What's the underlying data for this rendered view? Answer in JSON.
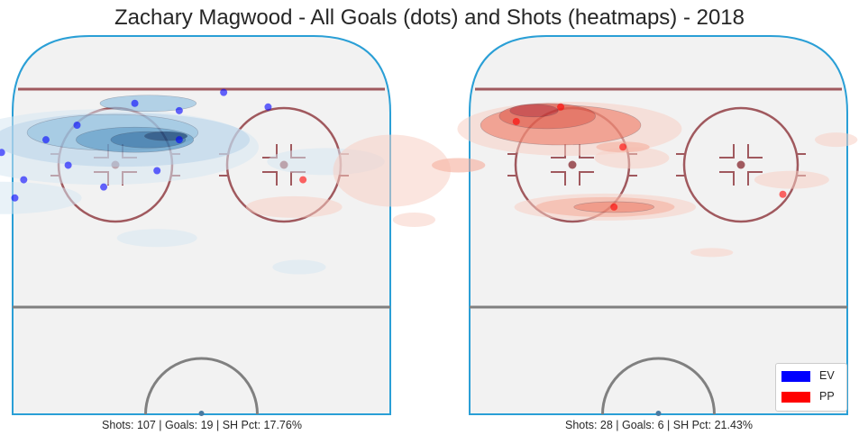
{
  "chart_data": {
    "type": "scatter",
    "title": "Zachary Magwood - All Goals (dots) and Shots (heatmaps) - 2018",
    "legend": {
      "position": "bottom-right",
      "entries": [
        {
          "label": "EV",
          "color": "#0000ff"
        },
        {
          "label": "PP",
          "color": "#ff0000"
        }
      ]
    },
    "panels": [
      {
        "series": "EV",
        "color": "#0000ff",
        "stats_text": "Shots: 107 | Goals: 19 | SH Pct: 17.76%",
        "goals": [
          [
            -72,
            32
          ],
          [
            -52,
            48
          ],
          [
            -48,
            42
          ],
          [
            -42,
            60
          ],
          [
            -45,
            85
          ],
          [
            -50,
            62
          ],
          [
            -58,
            70
          ],
          [
            -65,
            55
          ],
          [
            -30,
            78
          ],
          [
            -40,
            70
          ],
          [
            -35,
            92
          ],
          [
            -22,
            66
          ],
          [
            -28,
            100
          ],
          [
            -15,
            112
          ],
          [
            -10,
            75
          ],
          [
            -5,
            108
          ],
          [
            15,
            110
          ],
          [
            -5,
            92
          ],
          [
            5,
            118
          ]
        ],
        "heat_levels": [
          {
            "x": -8,
            "y": 94,
            "rx": 8,
            "ry": 5,
            "level": 6
          },
          {
            "x": -12,
            "y": 92,
            "rx": 14,
            "ry": 9,
            "level": 5
          },
          {
            "x": -15,
            "y": 92,
            "rx": 22,
            "ry": 14,
            "level": 4
          },
          {
            "x": -20,
            "y": 96,
            "rx": 32,
            "ry": 20,
            "level": 3
          },
          {
            "x": -12,
            "y": 112,
            "rx": 18,
            "ry": 9,
            "level": 3
          },
          {
            "x": -18,
            "y": 92,
            "rx": 48,
            "ry": 30,
            "level": 2
          },
          {
            "x": -22,
            "y": 88,
            "rx": 58,
            "ry": 42,
            "level": 1
          },
          {
            "x": -45,
            "y": 60,
            "rx": 30,
            "ry": 18,
            "level": 1
          },
          {
            "x": -68,
            "y": 32,
            "rx": 22,
            "ry": 10,
            "level": 1
          },
          {
            "x": -10,
            "y": 38,
            "rx": 15,
            "ry": 10,
            "level": 1
          },
          {
            "x": 28,
            "y": 80,
            "rx": 22,
            "ry": 15,
            "level": 1
          },
          {
            "x": 22,
            "y": 22,
            "rx": 10,
            "ry": 8,
            "level": 1
          }
        ]
      },
      {
        "series": "PP",
        "color": "#ff0000",
        "stats_text": "Shots: 28 | Goals: 6 | SH Pct: 21.43%",
        "goals": [
          [
            -22,
            110
          ],
          [
            -80,
            70
          ],
          [
            -10,
            55
          ],
          [
            -8,
            88
          ],
          [
            28,
            62
          ],
          [
            -32,
            102
          ]
        ],
        "heat_levels": [
          {
            "x": -28,
            "y": 108,
            "rx": 9,
            "ry": 7,
            "level": 5
          },
          {
            "x": -25,
            "y": 105,
            "rx": 18,
            "ry": 14,
            "level": 4
          },
          {
            "x": -22,
            "y": 100,
            "rx": 30,
            "ry": 22,
            "level": 3
          },
          {
            "x": -10,
            "y": 55,
            "rx": 15,
            "ry": 6,
            "level": 3
          },
          {
            "x": -12,
            "y": 55,
            "rx": 26,
            "ry": 11,
            "level": 2
          },
          {
            "x": -8,
            "y": 88,
            "rx": 10,
            "ry": 6,
            "level": 2
          },
          {
            "x": -45,
            "y": 78,
            "rx": 10,
            "ry": 8,
            "level": 2
          },
          {
            "x": -20,
            "y": 98,
            "rx": 42,
            "ry": 30,
            "level": 1
          },
          {
            "x": -60,
            "y": 75,
            "rx": 22,
            "ry": 40,
            "level": 1
          },
          {
            "x": -82,
            "y": 55,
            "rx": 18,
            "ry": 12,
            "level": 1
          },
          {
            "x": -12,
            "y": 55,
            "rx": 34,
            "ry": 15,
            "level": 1
          },
          {
            "x": -6,
            "y": 82,
            "rx": 14,
            "ry": 12,
            "level": 1
          },
          {
            "x": 30,
            "y": 70,
            "rx": 14,
            "ry": 10,
            "level": 1
          },
          {
            "x": 12,
            "y": 30,
            "rx": 8,
            "ry": 5,
            "level": 1
          },
          {
            "x": 40,
            "y": 92,
            "rx": 8,
            "ry": 8,
            "level": 1
          },
          {
            "x": -55,
            "y": 48,
            "rx": 8,
            "ry": 8,
            "level": 1
          }
        ]
      }
    ]
  }
}
